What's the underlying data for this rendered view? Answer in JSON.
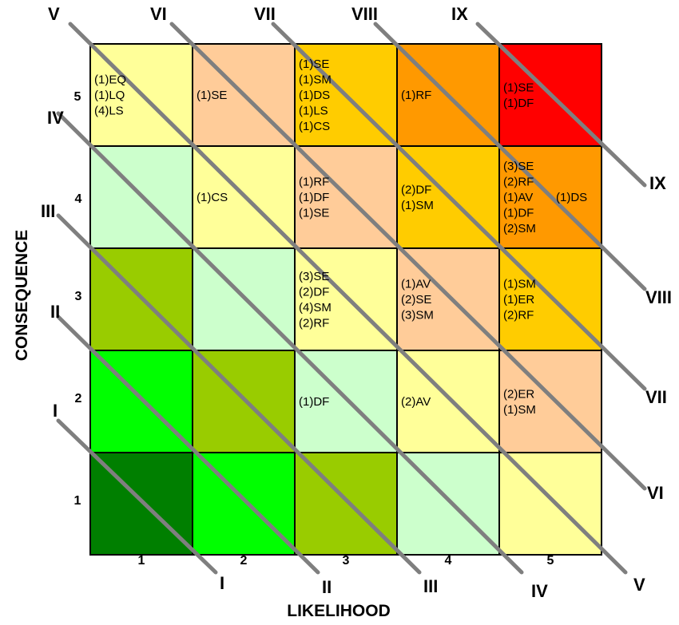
{
  "axes": {
    "x_label": "LIKELIHOOD",
    "y_label": "CONSEQUENCE",
    "x_ticks": [
      "1",
      "2",
      "3",
      "4",
      "5"
    ],
    "y_ticks": [
      "1",
      "2",
      "3",
      "4",
      "5"
    ]
  },
  "bands": [
    "I",
    "II",
    "III",
    "IV",
    "V",
    "VI",
    "VII",
    "VIII",
    "IX"
  ],
  "colors": {
    "level_1": "#007f00",
    "level_2": "#00ff00",
    "level_3": "#99cc00",
    "level_4": "#ccffcc",
    "level_5": "#ffff99",
    "level_6": "#ffcc99",
    "level_7": "#ffcc00",
    "level_8": "#ff9900",
    "level_9": "#ff0000",
    "band_line": "#7f7f7f"
  },
  "cells": [
    {
      "likelihood": 1,
      "consequence": 1,
      "level": 1,
      "entries": []
    },
    {
      "likelihood": 2,
      "consequence": 1,
      "level": 2,
      "entries": []
    },
    {
      "likelihood": 3,
      "consequence": 1,
      "level": 3,
      "entries": []
    },
    {
      "likelihood": 4,
      "consequence": 1,
      "level": 4,
      "entries": []
    },
    {
      "likelihood": 5,
      "consequence": 1,
      "level": 5,
      "entries": []
    },
    {
      "likelihood": 1,
      "consequence": 2,
      "level": 2,
      "entries": []
    },
    {
      "likelihood": 2,
      "consequence": 2,
      "level": 3,
      "entries": []
    },
    {
      "likelihood": 3,
      "consequence": 2,
      "level": 4,
      "entries": [
        "(1)DF"
      ]
    },
    {
      "likelihood": 4,
      "consequence": 2,
      "level": 5,
      "entries": [
        "(2)AV"
      ]
    },
    {
      "likelihood": 5,
      "consequence": 2,
      "level": 6,
      "entries": [
        "(2)ER",
        "(1)SM"
      ]
    },
    {
      "likelihood": 1,
      "consequence": 3,
      "level": 3,
      "entries": []
    },
    {
      "likelihood": 2,
      "consequence": 3,
      "level": 4,
      "entries": []
    },
    {
      "likelihood": 3,
      "consequence": 3,
      "level": 5,
      "entries": [
        "(3)SE",
        "(2)DF",
        "(4)SM",
        "(2)RF"
      ]
    },
    {
      "likelihood": 4,
      "consequence": 3,
      "level": 6,
      "entries": [
        "(1)AV",
        "(2)SE",
        "(3)SM"
      ]
    },
    {
      "likelihood": 5,
      "consequence": 3,
      "level": 7,
      "entries": [
        "(1)SM",
        "(1)ER",
        "(2)RF"
      ]
    },
    {
      "likelihood": 1,
      "consequence": 4,
      "level": 4,
      "entries": []
    },
    {
      "likelihood": 2,
      "consequence": 4,
      "level": 5,
      "entries": [
        "(1)CS"
      ]
    },
    {
      "likelihood": 3,
      "consequence": 4,
      "level": 6,
      "entries": [
        "(1)RF",
        "(1)DF",
        "(1)SE"
      ]
    },
    {
      "likelihood": 4,
      "consequence": 4,
      "level": 7,
      "entries": [
        "(2)DF",
        "(1)SM"
      ]
    },
    {
      "likelihood": 5,
      "consequence": 4,
      "level": 8,
      "entries": [
        "(3)SE",
        "(2)RF",
        "(1)AV",
        "(1)DF",
        "(2)SM"
      ],
      "extra": "(1)DS"
    },
    {
      "likelihood": 1,
      "consequence": 5,
      "level": 5,
      "entries": [
        "(1)EQ",
        "(1)LQ",
        "(4)LS"
      ]
    },
    {
      "likelihood": 2,
      "consequence": 5,
      "level": 6,
      "entries": [
        "(1)SE"
      ]
    },
    {
      "likelihood": 3,
      "consequence": 5,
      "level": 7,
      "entries": [
        "(1)SE",
        "(1)SM",
        "(1)DS",
        "(1)LS",
        "(1)CS"
      ]
    },
    {
      "likelihood": 4,
      "consequence": 5,
      "level": 8,
      "entries": [
        "(1)RF"
      ]
    },
    {
      "likelihood": 5,
      "consequence": 5,
      "level": 9,
      "entries": [
        "(1)SE",
        "(1)DF"
      ]
    }
  ]
}
